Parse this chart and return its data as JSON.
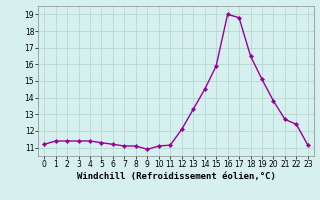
{
  "x": [
    0,
    1,
    2,
    3,
    4,
    5,
    6,
    7,
    8,
    9,
    10,
    11,
    12,
    13,
    14,
    15,
    16,
    17,
    18,
    19,
    20,
    21,
    22,
    23
  ],
  "y": [
    11.2,
    11.4,
    11.4,
    11.4,
    11.4,
    11.3,
    11.2,
    11.1,
    11.1,
    10.9,
    11.1,
    11.15,
    12.1,
    13.3,
    14.5,
    15.9,
    19.0,
    18.8,
    16.5,
    15.1,
    13.8,
    12.7,
    12.4,
    11.15
  ],
  "line_color": "#990099",
  "marker": "D",
  "marker_size": 2.2,
  "linewidth": 1.0,
  "xlabel": "Windchill (Refroidissement éolien,°C)",
  "xlabel_fontsize": 6.5,
  "xlim": [
    -0.5,
    23.5
  ],
  "ylim": [
    10.5,
    19.5
  ],
  "yticks": [
    11,
    12,
    13,
    14,
    15,
    16,
    17,
    18,
    19
  ],
  "xticks": [
    0,
    1,
    2,
    3,
    4,
    5,
    6,
    7,
    8,
    9,
    10,
    11,
    12,
    13,
    14,
    15,
    16,
    17,
    18,
    19,
    20,
    21,
    22,
    23
  ],
  "background_color": "#d6f0f0",
  "grid_color": "#b0d4c8",
  "tick_fontsize": 5.5,
  "fig_bg": "#d6f0f0"
}
